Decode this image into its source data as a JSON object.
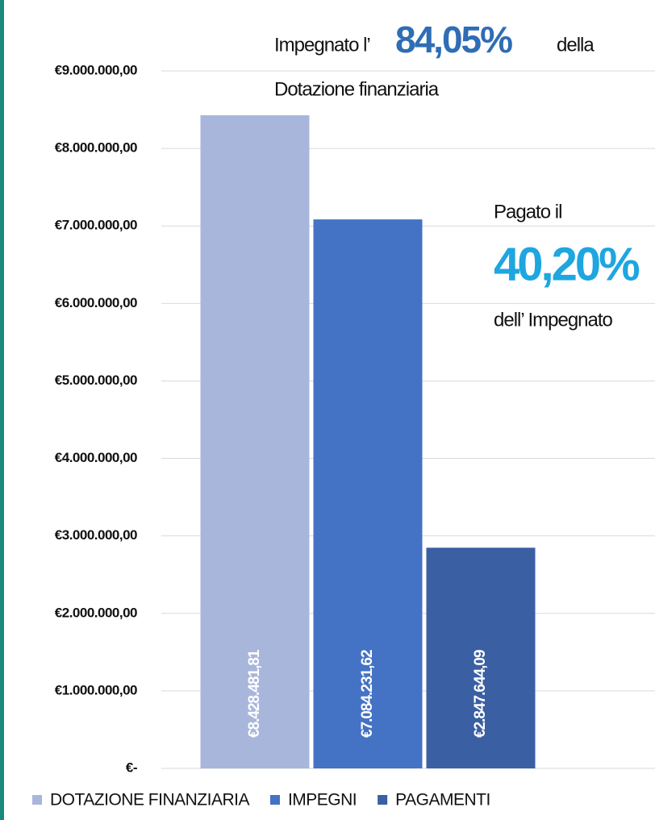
{
  "chart_data": {
    "type": "bar",
    "categories": [
      null
    ],
    "series": [
      {
        "name": "DOTAZIONE FINANZIARIA",
        "color": "#a9b6db",
        "values": [
          8428481.81
        ],
        "value_labels": [
          "€8.428.481,81"
        ]
      },
      {
        "name": "IMPEGNI",
        "color": "#4472c4",
        "values": [
          7084231.62
        ],
        "value_labels": [
          "€7.084.231,62"
        ]
      },
      {
        "name": "PAGAMENTI",
        "color": "#3a5fa3",
        "values": [
          2847644.09
        ],
        "value_labels": [
          "€2.847.644,09"
        ]
      }
    ],
    "ylim": [
      0,
      9000000
    ],
    "yticks": [
      {
        "value": 0,
        "label": "€-"
      },
      {
        "value": 1000000,
        "label": "€1.000.000,00"
      },
      {
        "value": 2000000,
        "label": "€2.000.000,00"
      },
      {
        "value": 3000000,
        "label": "€3.000.000,00"
      },
      {
        "value": 4000000,
        "label": "€4.000.000,00"
      },
      {
        "value": 5000000,
        "label": "€5.000.000,00"
      },
      {
        "value": 6000000,
        "label": "€6.000.000,00"
      },
      {
        "value": 7000000,
        "label": "€7.000.000,00"
      },
      {
        "value": 8000000,
        "label": "€8.000.000,00"
      },
      {
        "value": 9000000,
        "label": "€9.000.000,00"
      }
    ],
    "grid": true,
    "legend": "bottom",
    "annotations": {
      "impegnato_pre": "Impegnato l’",
      "impegnato_pct": "84,05%",
      "impegnato_post": "della",
      "impegnato_line2": "Dotazione finanziaria",
      "pagato_pre": "Pagato il",
      "pagato_pct": "40,20%",
      "pagato_post": "dell’ Impegnato"
    }
  }
}
